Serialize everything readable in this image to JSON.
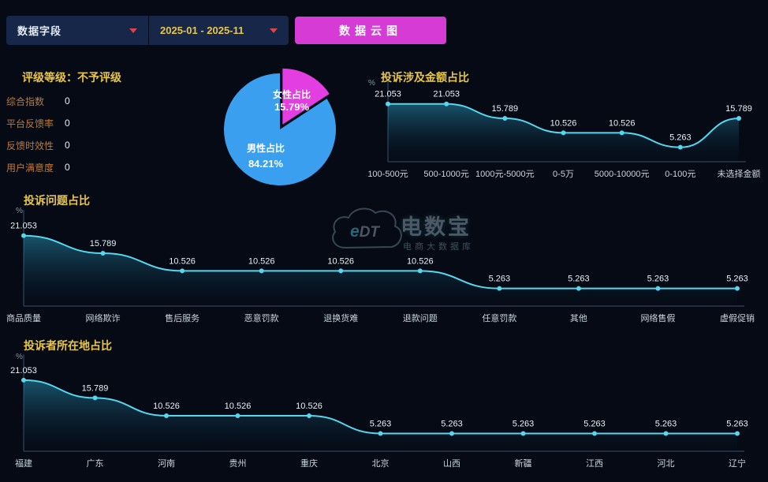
{
  "toolbar": {
    "field_dropdown": {
      "label": "数据字段"
    },
    "date_dropdown": {
      "label": "2025-01 - 2025-11"
    },
    "cloud_button": "数据云图"
  },
  "rating_panel": {
    "title": "评级等级：不予评级",
    "metrics": [
      {
        "label": "综合指数",
        "value": "0"
      },
      {
        "label": "平台反馈率",
        "value": "0"
      },
      {
        "label": "反馈时效性",
        "value": "0"
      },
      {
        "label": "用户满意度",
        "value": "0"
      }
    ]
  },
  "watermark": {
    "logo_e": "e",
    "logo_dt": "DT",
    "name": "电数宝",
    "subtitle": "电商大数据库"
  },
  "colors": {
    "background": "#050a14",
    "panel": "#16274a",
    "button_magenta": "#d63bd6",
    "title_yellow": "#e9c646",
    "metric_label_orange": "#bd7b3c",
    "line": "#56d7ee",
    "area_top": "#2e9ec4",
    "area_bottom": "#0a2540",
    "axis": "#3d5166",
    "value_label": "#e8f2f6",
    "category_label": "#c9d4dd",
    "caret_red": "#d8454b",
    "pie_female": "#e23ee2",
    "pie_male": "#3b9ff0"
  },
  "chart_data": [
    {
      "type": "pie",
      "slices": [
        {
          "name": "女性占比",
          "value": 15.79,
          "label": "15.79%",
          "color": "#e23ee2"
        },
        {
          "name": "男性占比",
          "value": 84.21,
          "label": "84.21%",
          "color": "#3b9ff0"
        }
      ]
    },
    {
      "type": "line",
      "title": "投诉涉及金额占比",
      "ylabel": "%",
      "categories": [
        "100-500元",
        "500-1000元",
        "1000元-5000元",
        "0-5万",
        "5000-10000元",
        "0-100元",
        "未选择金额"
      ],
      "values": [
        21.053,
        21.053,
        15.789,
        10.526,
        10.526,
        5.263,
        15.789
      ],
      "ylim": [
        0,
        25
      ],
      "grid": false,
      "legend": "none"
    },
    {
      "type": "line",
      "title": "投诉问题占比",
      "ylabel": "%",
      "categories": [
        "商品质量",
        "网络欺诈",
        "售后服务",
        "恶意罚款",
        "退换货难",
        "退款问题",
        "任意罚款",
        "其他",
        "网络售假",
        "虚假促销"
      ],
      "values": [
        21.053,
        15.789,
        10.526,
        10.526,
        10.526,
        10.526,
        5.263,
        5.263,
        5.263,
        5.263
      ],
      "ylim": [
        0,
        25
      ],
      "grid": false,
      "legend": "none"
    },
    {
      "type": "line",
      "title": "投诉者所在地占比",
      "ylabel": "%",
      "categories": [
        "福建",
        "广东",
        "河南",
        "贵州",
        "重庆",
        "北京",
        "山西",
        "新疆",
        "江西",
        "河北",
        "辽宁"
      ],
      "values": [
        21.053,
        15.789,
        10.526,
        10.526,
        10.526,
        5.263,
        5.263,
        5.263,
        5.263,
        5.263,
        5.263
      ],
      "ylim": [
        0,
        25
      ],
      "grid": false,
      "legend": "none"
    }
  ]
}
